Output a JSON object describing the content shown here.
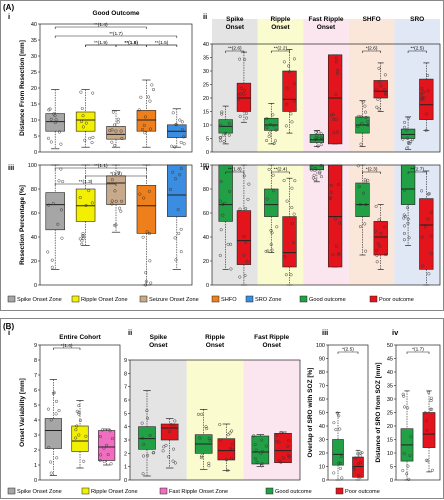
{
  "figure_labels": {
    "A": "(A)",
    "B": "(B)"
  },
  "chart_data": [
    {
      "id": "Ai",
      "type": "box",
      "panel_label": "i",
      "title": "Good Outcome",
      "ylabel": "Distance From Resection [mm]",
      "ylim": [
        0,
        40
      ],
      "yticks": [
        0,
        5,
        10,
        15,
        20,
        25,
        30,
        35,
        40
      ],
      "groups": [
        {
          "name": "Spike Onset Zone",
          "color": "#a6a6a6",
          "q1": 6.5,
          "median": 9.5,
          "q3": 12,
          "wlo": 1,
          "whi": 19.5
        },
        {
          "name": "Ripple Onset Zone",
          "color": "#f2ef00",
          "q1": 6.5,
          "median": 10,
          "q3": 12.5,
          "wlo": 1.5,
          "whi": 19.5
        },
        {
          "name": "Seizure Onset Zone",
          "color": "#c8a98a",
          "q1": 4,
          "median": 5.5,
          "q3": 8,
          "wlo": 1.5,
          "whi": 13
        },
        {
          "name": "SHFO",
          "color": "#ef7f1a",
          "q1": 6.5,
          "median": 10,
          "q3": 13,
          "wlo": 1.5,
          "whi": 22.5
        },
        {
          "name": "SRO Zone",
          "color": "#3a8de0",
          "q1": 4.5,
          "median": 6.5,
          "q3": 8.5,
          "wlo": 1.5,
          "whi": 13.5
        }
      ],
      "brackets": [
        {
          "from": 1,
          "to": 4,
          "label": "**(1.4)"
        },
        {
          "from": 1,
          "to": 5,
          "label": "**(1.7)"
        },
        {
          "from": 2,
          "to": 5,
          "label": "**(1.5)"
        },
        {
          "from": 2,
          "to": 3,
          "label": "**(1.9)"
        },
        {
          "from": 3,
          "to": 4,
          "label": "**(1.8)"
        },
        {
          "from": 4,
          "to": 5,
          "label": "**(1.5)"
        }
      ]
    },
    {
      "id": "Aii",
      "type": "box",
      "panel_label": "ii",
      "ylim": [
        0,
        40
      ],
      "yticks": [
        0,
        5,
        10,
        15,
        20,
        25,
        30,
        35,
        40
      ],
      "categories": [
        "Spike Onset",
        "Ripple Onset",
        "Fast Ripple Onset",
        "SHFO",
        "SRO"
      ],
      "significance": [
        "**(2.6)",
        "**(2.2)",
        "",
        "*(2.6)",
        "**(2.5)"
      ],
      "series": [
        {
          "name": "Good outcome",
          "color": "#22a046",
          "boxes": [
            {
              "q1": 7,
              "median": 9.5,
              "q3": 12,
              "wlo": 3,
              "whi": 17
            },
            {
              "q1": 8,
              "median": 10,
              "q3": 12.5,
              "wlo": 3,
              "whi": 18
            },
            {
              "q1": 3.5,
              "median": 4.5,
              "q3": 6.5,
              "wlo": 2,
              "whi": 8
            },
            {
              "q1": 7,
              "median": 10,
              "q3": 13,
              "wlo": 2,
              "whi": 19
            },
            {
              "q1": 5,
              "median": 6.5,
              "q3": 8.5,
              "wlo": 1,
              "whi": 13
            }
          ]
        },
        {
          "name": "Poor outcome",
          "color": "#e3141b",
          "boxes": [
            {
              "q1": 15,
              "median": 20,
              "q3": 25.5,
              "wlo": 11,
              "whi": 37
            },
            {
              "q1": 15,
              "median": 19.5,
              "q3": 30,
              "wlo": 7,
              "whi": 38
            },
            {
              "q1": 3,
              "median": 20,
              "q3": 36,
              "wlo": 3,
              "whi": 36
            },
            {
              "q1": 20,
              "median": 22.5,
              "q3": 26.5,
              "wlo": 15,
              "whi": 33
            },
            {
              "q1": 12,
              "median": 17.5,
              "q3": 27,
              "wlo": 8,
              "whi": 33
            }
          ]
        }
      ]
    },
    {
      "id": "Aiii",
      "type": "box",
      "panel_label": "iii",
      "ylabel": "Resection Percentage [%]",
      "ylim": [
        0,
        100
      ],
      "yticks": [
        0,
        20,
        40,
        60,
        80,
        100
      ],
      "groups": [
        {
          "name": "Spike Onset Zone",
          "color": "#a6a6a6",
          "q1": 46,
          "median": 67,
          "q3": 77,
          "wlo": 13,
          "whi": 100
        },
        {
          "name": "Ripple Onset Zone",
          "color": "#f2ef00",
          "q1": 53,
          "median": 66,
          "q3": 80,
          "wlo": 33,
          "whi": 100
        },
        {
          "name": "Seizure Onset Zone",
          "color": "#c8a98a",
          "q1": 67,
          "median": 85,
          "q3": 91,
          "wlo": 44,
          "whi": 100
        },
        {
          "name": "SHFO",
          "color": "#ef7f1a",
          "q1": 43,
          "median": 66,
          "q3": 83,
          "wlo": 0,
          "whi": 100
        },
        {
          "name": "SRO Zone",
          "color": "#3a8de0",
          "q1": 57,
          "median": 75,
          "q3": 100,
          "wlo": 13,
          "whi": 100
        }
      ],
      "brackets": [
        {
          "from": 1,
          "to": 4,
          "label": "**(1.1)"
        },
        {
          "from": 2,
          "to": 4,
          "label": "*(1.2)"
        },
        {
          "from": 1,
          "to": 3,
          "label": "**(1.3)"
        }
      ]
    },
    {
      "id": "Aiv",
      "type": "box",
      "panel_label": "iv",
      "ylim": [
        0,
        100
      ],
      "yticks": [
        0,
        20,
        40,
        60,
        80,
        100
      ],
      "categories": [
        "Spike Onset",
        "Ripple Onset",
        "Fast Ripple Onset",
        "SHFO",
        "SRO"
      ],
      "significance": [
        "**(1.8)",
        "**(2.4)",
        "",
        "*(2.3)",
        "**(2.7)"
      ],
      "series": [
        {
          "name": "Good outcome",
          "color": "#22a046",
          "boxes": [
            {
              "q1": 53,
              "median": 67,
              "q3": 100,
              "wlo": 13,
              "whi": 100
            },
            {
              "q1": 57,
              "median": 67,
              "q3": 80,
              "wlo": 27,
              "whi": 100
            },
            {
              "q1": 96,
              "median": 100,
              "q3": 100,
              "wlo": 86,
              "whi": 100
            },
            {
              "q1": 57,
              "median": 67,
              "q3": 85,
              "wlo": 25,
              "whi": 100
            },
            {
              "q1": 67,
              "median": 80,
              "q3": 100,
              "wlo": 33,
              "whi": 100
            }
          ]
        },
        {
          "name": "Poor outcome",
          "color": "#e3141b",
          "boxes": [
            {
              "q1": 17,
              "median": 37,
              "q3": 62,
              "wlo": 0,
              "whi": 100
            },
            {
              "q1": 15,
              "median": 27,
              "q3": 57,
              "wlo": 0,
              "whi": 89
            },
            {
              "q1": 15,
              "median": 57,
              "q3": 100,
              "wlo": 15,
              "whi": 100
            },
            {
              "q1": 25,
              "median": 40,
              "q3": 53,
              "wlo": 13,
              "whi": 67
            },
            {
              "q1": 13,
              "median": 50,
              "q3": 72,
              "wlo": 0,
              "whi": 95
            }
          ]
        }
      ]
    },
    {
      "id": "Bi",
      "type": "box",
      "panel_label": "i",
      "title": "Entire Cohort",
      "ylabel": "Onset Variability [mm]",
      "ylim": [
        0,
        9
      ],
      "yticks": [
        0,
        1,
        2,
        3,
        4,
        5,
        6,
        7,
        8,
        9
      ],
      "groups": [
        {
          "name": "Spike Onset Zone",
          "color": "#a6a6a6",
          "q1": 2.1,
          "median": 3.3,
          "q3": 4.1,
          "wlo": 0.3,
          "whi": 6.7
        },
        {
          "name": "Ripple Onset Zone",
          "color": "#f2ef00",
          "q1": 1.9,
          "median": 2.6,
          "q3": 3.6,
          "wlo": 0.8,
          "whi": 5.3
        },
        {
          "name": "Fast Ripple Onset Zone",
          "color": "#f06ec0",
          "q1": 1.3,
          "median": 2.2,
          "q3": 3.3,
          "wlo": 1.0,
          "whi": 3.4
        }
      ],
      "brackets": [
        {
          "from": 1,
          "to": 2,
          "label": "*(1.4)"
        }
      ]
    },
    {
      "id": "Bii",
      "type": "box",
      "panel_label": "ii",
      "ylim": [
        0,
        9
      ],
      "yticks": [
        0,
        1,
        2,
        3,
        4,
        5,
        6,
        7,
        8,
        9
      ],
      "categories": [
        "Spike Onset",
        "Ripple Onset",
        "Fast Ripple Onset"
      ],
      "series": [
        {
          "name": "Good outcome",
          "color": "#22a046",
          "boxes": [
            {
              "q1": 2.3,
              "median": 3.1,
              "q3": 4.0,
              "wlo": 0.3,
              "whi": 6.7
            },
            {
              "q1": 2.0,
              "median": 2.7,
              "q3": 3.4,
              "wlo": 0.8,
              "whi": 5.3
            },
            {
              "q1": 1.2,
              "median": 2.1,
              "q3": 3.3,
              "wlo": 1.0,
              "whi": 3.4
            }
          ]
        },
        {
          "name": "Poor outcome",
          "color": "#e3141b",
          "boxes": [
            {
              "q1": 3.0,
              "median": 3.9,
              "q3": 4.2,
              "wlo": 0.9,
              "whi": 4.6
            },
            {
              "q1": 1.5,
              "median": 2.2,
              "q3": 3.1,
              "wlo": 0.7,
              "whi": 4.2
            },
            {
              "q1": 1.3,
              "median": 2.2,
              "q3": 3.5,
              "wlo": 1.3,
              "whi": 3.6
            }
          ]
        }
      ]
    },
    {
      "id": "Biii",
      "type": "box",
      "panel_label": "iii",
      "ylabel": "Overlap of SRO with SOZ [%]",
      "ylim": [
        0,
        100
      ],
      "yticks": [
        0,
        10,
        20,
        30,
        40,
        50,
        60,
        70,
        80,
        90,
        100
      ],
      "categories": [
        "Good outcome",
        "Poor outcome"
      ],
      "significance": [
        "*(2.5)"
      ],
      "series": [
        {
          "name": "Good outcome",
          "color": "#22a046",
          "boxes": [
            {
              "q1": 11,
              "median": 19,
              "q3": 30,
              "wlo": 0,
              "whi": 50
            }
          ]
        },
        {
          "name": "Poor outcome",
          "color": "#e3141b",
          "boxes": [
            {
              "q1": 2,
              "median": 10,
              "q3": 17,
              "wlo": 0,
              "whi": 22
            }
          ]
        }
      ]
    },
    {
      "id": "Biv",
      "type": "box",
      "panel_label": "iv",
      "ylabel": "Distance of SRO from SOZ [mm]",
      "ylim": [
        0,
        50
      ],
      "yticks": [
        0,
        5,
        10,
        15,
        20,
        25,
        30,
        35,
        40,
        45,
        50
      ],
      "categories": [
        "Good outcome",
        "Poor outcome"
      ],
      "significance": [
        "*(1.7)"
      ],
      "series": [
        {
          "name": "Good outcome",
          "color": "#22a046",
          "boxes": [
            {
              "q1": 7,
              "median": 13,
              "q3": 19,
              "wlo": 0,
              "whi": 33
            }
          ]
        },
        {
          "name": "Poor outcome",
          "color": "#e3141b",
          "boxes": [
            {
              "q1": 12,
              "median": 17,
              "q3": 25,
              "wlo": 3,
              "whi": 33
            }
          ]
        }
      ]
    }
  ],
  "legend_A": [
    {
      "label": "Spike Onset Zone",
      "color": "#a6a6a6"
    },
    {
      "label": "Ripple Onset Zone",
      "color": "#f2ef00"
    },
    {
      "label": "Seizure Onset Zone",
      "color": "#c8a98a"
    },
    {
      "label": "SHFO",
      "color": "#ef7f1a"
    },
    {
      "label": "SRO Zone",
      "color": "#3a8de0"
    },
    {
      "label": "Good outcome",
      "color": "#22a046"
    },
    {
      "label": "Poor outcome",
      "color": "#e3141b"
    }
  ],
  "legend_B": [
    {
      "label": "Spike Onset Zone",
      "color": "#a6a6a6"
    },
    {
      "label": "Ripple Onset Zone",
      "color": "#f2ef00"
    },
    {
      "label": "Fast Ripple Onset Zone",
      "color": "#f06ec0"
    },
    {
      "label": "Good outcome",
      "color": "#22a046"
    },
    {
      "label": "Poor outcome",
      "color": "#e3141b"
    }
  ],
  "band_colors": [
    "#e4e4e4",
    "#fbfbd0",
    "#fbe6f0",
    "#fbe6da",
    "#e0e8f6"
  ]
}
